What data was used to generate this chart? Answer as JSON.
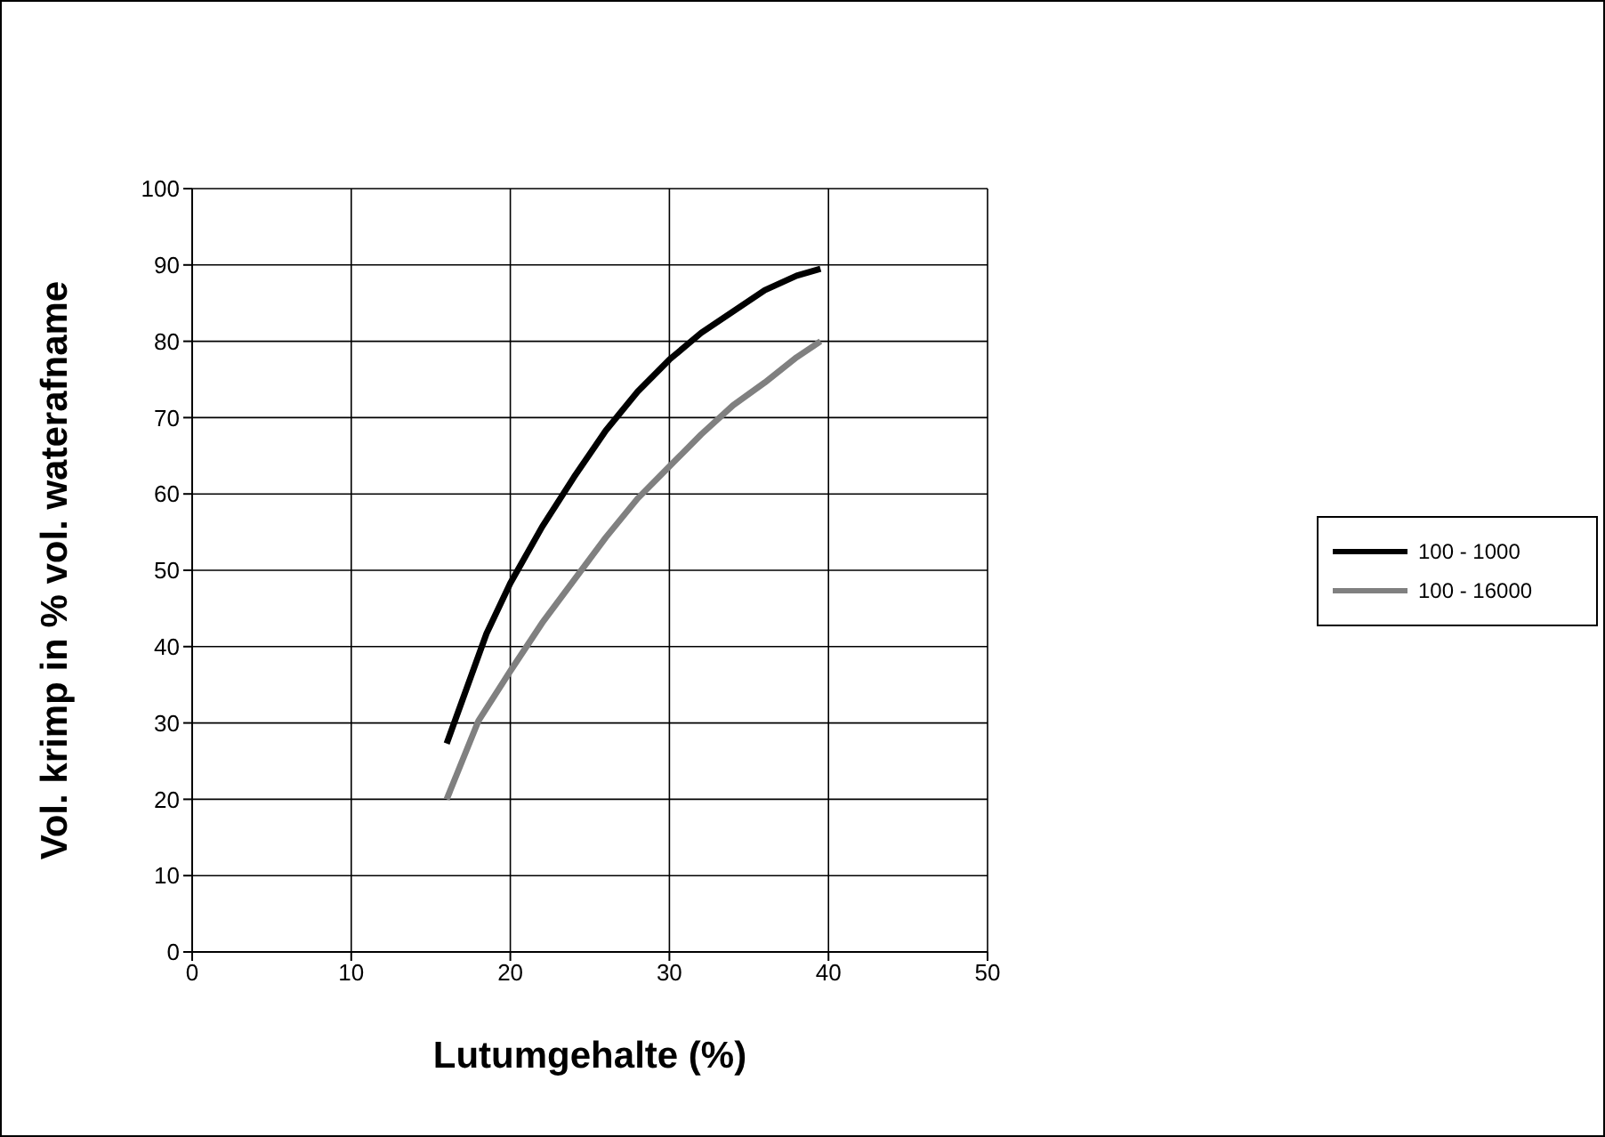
{
  "chart_data": {
    "type": "line",
    "xlabel": "Lutumgehalte (%)",
    "ylabel": "Vol. krimp in % vol. waterafname",
    "xlim": [
      0,
      50
    ],
    "xticks": [
      0,
      10,
      20,
      30,
      40,
      50
    ],
    "ylim": [
      0,
      100
    ],
    "yticks": [
      0,
      10,
      20,
      30,
      40,
      50,
      60,
      70,
      80,
      90,
      100
    ],
    "grid": true,
    "legend": "right",
    "marker": "none",
    "line_style": "solid",
    "series": [
      {
        "name": "100 - 1000",
        "color": "#000000",
        "x": [
          16,
          18.5,
          20,
          22,
          24,
          26,
          28,
          30,
          32,
          34,
          36,
          38,
          39.5
        ],
        "values": [
          27.3,
          41.7,
          48.3,
          55.7,
          62.2,
          68.3,
          73.4,
          77.6,
          81.1,
          83.9,
          86.7,
          88.6,
          89.5
        ]
      },
      {
        "name": "100 - 16000",
        "color": "#808080",
        "x": [
          16,
          18,
          20,
          22,
          24,
          26,
          28,
          30,
          32,
          34,
          36,
          38,
          39.5
        ],
        "values": [
          20,
          30.3,
          36.8,
          43.1,
          48.7,
          54.3,
          59.4,
          63.6,
          67.8,
          71.6,
          74.6,
          77.9,
          80
        ]
      }
    ]
  }
}
